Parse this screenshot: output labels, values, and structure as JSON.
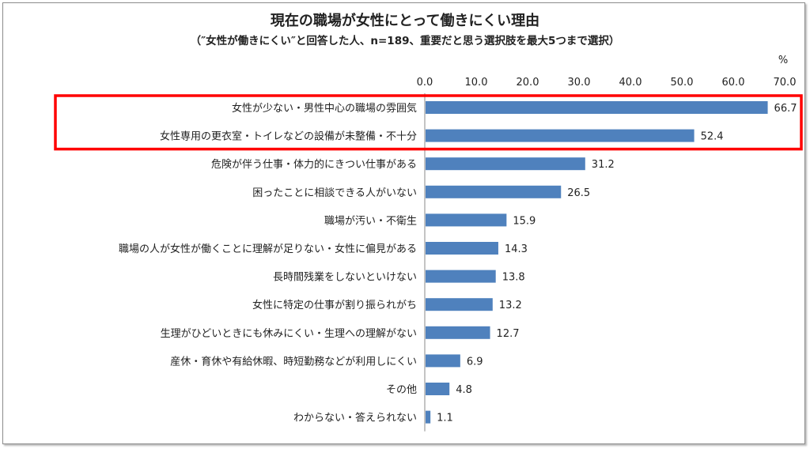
{
  "chart_data": {
    "type": "bar",
    "orientation": "horizontal",
    "title": "現在の職場が女性にとって働きにくい理由",
    "subtitle": "（″女性が働きにくい″と回答した人、n=189、重要だと思う選択肢を最大5つまで選択）",
    "unit_label": "%",
    "xlim": [
      0,
      70
    ],
    "ticks": [
      "0.0",
      "10.0",
      "20.0",
      "30.0",
      "40.0",
      "50.0",
      "60.0",
      "70.0"
    ],
    "categories": [
      "女性が少ない・男性中心の職場の雰囲気",
      "女性専用の更衣室・トイレなどの設備が未整備・不十分",
      "危険が伴う仕事・体力的にきつい仕事がある",
      "困ったことに相談できる人がいない",
      "職場が汚い・不衛生",
      "職場の人が女性が働くことに理解が足りない・女性に偏見がある",
      "長時間残業をしないといけない",
      "女性に特定の仕事が割り振られがち",
      "生理がひどいときにも休みにくい・生理への理解がない",
      "産休・育休や有給休暇、時短勤務などが利用しにくい",
      "その他",
      "わからない・答えられない"
    ],
    "values": [
      66.7,
      52.4,
      31.2,
      26.5,
      15.9,
      14.3,
      13.8,
      13.2,
      12.7,
      6.9,
      4.8,
      1.1
    ],
    "value_labels": [
      "66.7",
      "52.4",
      "31.2",
      "26.5",
      "15.9",
      "14.3",
      "13.8",
      "13.2",
      "12.7",
      "6.9",
      "4.8",
      "1.1"
    ],
    "highlighted_count": 2,
    "bar_color": "#4f81bd",
    "highlight_color": "#ff0000"
  }
}
